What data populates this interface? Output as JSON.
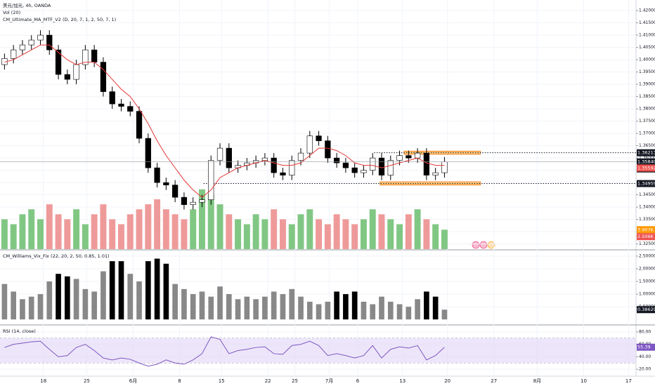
{
  "chart_data": [
    {
      "type": "candlestick",
      "title": "美元/加元, 4h, OANDA",
      "indicators": [
        "Vol (20)",
        "CM_Ultimate_MA_MTF_V2 (D, 20, 7, 1, 2, 50, 7, 1)"
      ],
      "x": [
        3,
        9,
        15,
        21,
        27,
        33,
        39,
        45,
        51,
        57,
        63,
        69,
        75,
        81,
        87,
        93,
        99,
        105,
        111,
        117,
        123,
        129,
        135,
        141,
        147,
        153,
        159,
        165,
        171,
        177,
        183,
        189,
        195,
        201,
        207,
        213,
        219,
        225,
        231,
        237,
        243,
        249,
        255,
        261,
        267,
        273,
        279,
        285,
        291,
        297
      ],
      "open": [
        1.398,
        1.4005,
        1.404,
        1.406,
        1.408,
        1.41,
        1.404,
        1.394,
        1.392,
        1.398,
        1.404,
        1.399,
        1.387,
        1.382,
        1.381,
        1.379,
        1.368,
        1.356,
        1.35,
        1.349,
        1.344,
        1.341,
        1.342,
        1.343,
        1.359,
        1.364,
        1.356,
        1.357,
        1.358,
        1.359,
        1.36,
        1.354,
        1.353,
        1.359,
        1.362,
        1.369,
        1.367,
        1.36,
        1.358,
        1.356,
        1.354,
        1.355,
        1.36,
        1.353,
        1.359,
        1.361,
        1.36,
        1.362,
        1.353,
        1.354
      ],
      "high": [
        1.4025,
        1.406,
        1.408,
        1.41,
        1.412,
        1.412,
        1.406,
        1.396,
        1.4,
        1.406,
        1.406,
        1.401,
        1.389,
        1.384,
        1.383,
        1.381,
        1.37,
        1.358,
        1.352,
        1.351,
        1.346,
        1.344,
        1.345,
        1.361,
        1.366,
        1.366,
        1.359,
        1.36,
        1.361,
        1.362,
        1.362,
        1.356,
        1.361,
        1.364,
        1.371,
        1.371,
        1.369,
        1.362,
        1.36,
        1.358,
        1.357,
        1.362,
        1.362,
        1.361,
        1.363,
        1.363,
        1.364,
        1.364,
        1.356,
        1.3604
      ],
      "low": [
        1.396,
        1.3985,
        1.402,
        1.404,
        1.406,
        1.402,
        1.392,
        1.39,
        1.39,
        1.396,
        1.397,
        1.385,
        1.38,
        1.379,
        1.377,
        1.366,
        1.354,
        1.348,
        1.347,
        1.342,
        1.339,
        1.339,
        1.34,
        1.341,
        1.357,
        1.354,
        1.354,
        1.355,
        1.356,
        1.357,
        1.352,
        1.351,
        1.351,
        1.357,
        1.36,
        1.365,
        1.358,
        1.356,
        1.354,
        1.352,
        1.352,
        1.353,
        1.351,
        1.351,
        1.357,
        1.358,
        1.358,
        1.351,
        1.351,
        1.352
      ],
      "close": [
        1.4005,
        1.404,
        1.406,
        1.408,
        1.41,
        1.404,
        1.394,
        1.392,
        1.398,
        1.404,
        1.399,
        1.387,
        1.382,
        1.381,
        1.379,
        1.368,
        1.356,
        1.35,
        1.349,
        1.344,
        1.341,
        1.342,
        1.343,
        1.359,
        1.364,
        1.356,
        1.357,
        1.358,
        1.359,
        1.36,
        1.354,
        1.353,
        1.359,
        1.362,
        1.369,
        1.367,
        1.36,
        1.358,
        1.356,
        1.354,
        1.355,
        1.36,
        1.353,
        1.359,
        1.361,
        1.36,
        1.362,
        1.353,
        1.354,
        1.3584
      ],
      "up_color": "#ffffff",
      "down_color": "#000000",
      "wick_color": "#000000",
      "ma": {
        "color": "#e53935",
        "values": [
          1.399,
          1.4,
          1.402,
          1.404,
          1.406,
          1.406,
          1.403,
          1.4,
          1.398,
          1.399,
          1.399,
          1.396,
          1.392,
          1.388,
          1.385,
          1.38,
          1.374,
          1.367,
          1.361,
          1.356,
          1.351,
          1.347,
          1.344,
          1.347,
          1.352,
          1.354,
          1.356,
          1.357,
          1.358,
          1.359,
          1.358,
          1.357,
          1.357,
          1.358,
          1.361,
          1.364,
          1.364,
          1.363,
          1.361,
          1.358,
          1.357,
          1.357,
          1.356,
          1.357,
          1.358,
          1.359,
          1.36,
          1.358,
          1.357,
          1.357
        ]
      },
      "volume": {
        "ylim": [
          0,
          50
        ],
        "up_color": "#81c784",
        "down_color": "#ef9a9a",
        "values": [
          6,
          5,
          7,
          8,
          6,
          9,
          7,
          6,
          8,
          5,
          7,
          9,
          6,
          5,
          7,
          8,
          9,
          10,
          8,
          7,
          6,
          8,
          12,
          11,
          9,
          7,
          6,
          5,
          7,
          6,
          8,
          6,
          5,
          7,
          8,
          6,
          5,
          7,
          6,
          5,
          6,
          8,
          7,
          6,
          5,
          7,
          8,
          6,
          5,
          3.907
        ],
        "tags": [
          {
            "value": 3.907,
            "label": "3.907K",
            "color": "#ff9800"
          },
          {
            "value": 2.506,
            "label": "2.506K",
            "color": "#ef5350"
          }
        ]
      },
      "levels": [
        {
          "value": 1.36213,
          "from": 250
        },
        {
          "value": 1.34959,
          "from": 136
        }
      ],
      "zones": [
        {
          "x": [
            270,
            321
          ],
          "y": [
            1.3615,
            1.3628
          ]
        },
        {
          "x": [
            254,
            321
          ],
          "y": [
            1.349,
            1.3503
          ]
        }
      ],
      "zone_color": "#ffcc80",
      "zone_border": "#ef6c00",
      "tags": [
        {
          "value": 1.36213,
          "label": "1.36213",
          "color": "#131722"
        },
        {
          "value": 1.3584,
          "label": "1.35840",
          "color": "#131722",
          "note": "33:48"
        },
        {
          "value": 1.35592,
          "label": "1.35592",
          "color": "#ef5350"
        },
        {
          "value": 1.34959,
          "label": "1.34959",
          "color": "#131722"
        }
      ],
      "xlim": [
        0,
        425
      ],
      "xticks": [
        {
          "value": 29,
          "label": "18"
        },
        {
          "value": 58,
          "label": "25"
        },
        {
          "value": 89,
          "label": "6月"
        },
        {
          "value": 120,
          "label": "8"
        },
        {
          "value": 148,
          "label": "15"
        },
        {
          "value": 179,
          "label": "22"
        },
        {
          "value": 197,
          "label": "25"
        },
        {
          "value": 220,
          "label": "7月"
        },
        {
          "value": 239,
          "label": "6"
        },
        {
          "value": 269,
          "label": "13"
        },
        {
          "value": 299,
          "label": "20"
        },
        {
          "value": 330,
          "label": "27"
        },
        {
          "value": 359,
          "label": "8月"
        },
        {
          "value": 390,
          "label": "10"
        },
        {
          "value": 420,
          "label": "17"
        }
      ],
      "ylim": [
        1.3229,
        1.4243
      ],
      "yticks": [
        {
          "value": 1.325,
          "label": "1.32500"
        },
        {
          "value": 1.33,
          "label": "1.33000"
        },
        {
          "value": 1.335,
          "label": "1.33500"
        },
        {
          "value": 1.34,
          "label": "1.34000"
        },
        {
          "value": 1.345,
          "label": "1.34500"
        },
        {
          "value": 1.35,
          "label": "1.35000"
        },
        {
          "value": 1.355,
          "label": "1.35500"
        },
        {
          "value": 1.36,
          "label": "1.36000"
        },
        {
          "value": 1.365,
          "label": "1.36500"
        },
        {
          "value": 1.37,
          "label": "1.37000"
        },
        {
          "value": 1.375,
          "label": "1.37500"
        },
        {
          "value": 1.38,
          "label": "1.38000"
        },
        {
          "value": 1.385,
          "label": "1.38500"
        },
        {
          "value": 1.39,
          "label": "1.39000"
        },
        {
          "value": 1.395,
          "label": "1.39500"
        },
        {
          "value": 1.4,
          "label": "1.40000"
        },
        {
          "value": 1.405,
          "label": "1.40500"
        },
        {
          "value": 1.41,
          "label": "1.41000"
        },
        {
          "value": 1.415,
          "label": "1.41500"
        },
        {
          "value": 1.42,
          "label": "1.42000"
        }
      ]
    },
    {
      "type": "bar",
      "title": "CM_Williams_Vix_Fix (22, 20, 2, 50, 0.85, 1.01)",
      "values": [
        1.4,
        1.1,
        0.8,
        0.9,
        1.0,
        1.5,
        1.8,
        1.7,
        1.6,
        1.2,
        1.1,
        1.9,
        2.3,
        2.3,
        1.8,
        1.5,
        2.3,
        2.4,
        2.2,
        1.4,
        1.2,
        1.0,
        1.1,
        0.9,
        1.3,
        1.0,
        0.8,
        0.9,
        0.8,
        0.9,
        1.1,
        1.0,
        1.2,
        0.9,
        0.7,
        0.6,
        0.7,
        1.1,
        1.0,
        1.1,
        0.7,
        0.6,
        0.9,
        0.7,
        0.6,
        0.5,
        0.8,
        1.1,
        0.9,
        0.38629
      ],
      "colors": [
        "#888888",
        "#888888",
        "#888888",
        "#888888",
        "#888888",
        "#888888",
        "#000000",
        "#000000",
        "#888888",
        "#888888",
        "#888888",
        "#888888",
        "#000000",
        "#000000",
        "#888888",
        "#888888",
        "#000000",
        "#000000",
        "#000000",
        "#888888",
        "#888888",
        "#888888",
        "#888888",
        "#888888",
        "#888888",
        "#888888",
        "#888888",
        "#888888",
        "#888888",
        "#888888",
        "#888888",
        "#888888",
        "#888888",
        "#888888",
        "#888888",
        "#888888",
        "#888888",
        "#000000",
        "#000000",
        "#000000",
        "#888888",
        "#888888",
        "#888888",
        "#888888",
        "#888888",
        "#888888",
        "#888888",
        "#000000",
        "#000000",
        "#888888"
      ],
      "tag_color": "#131722",
      "ylim": [
        -0.19,
        2.72
      ],
      "yticks": [
        {
          "value": 0.5,
          "label": "0.50000"
        },
        {
          "value": 1,
          "label": "1.00000"
        },
        {
          "value": 1.5,
          "label": "1.50000"
        },
        {
          "value": 2,
          "label": "2.00000"
        },
        {
          "value": 2.5,
          "label": "2.50000"
        }
      ]
    },
    {
      "type": "line",
      "title": "RSI (14, close)",
      "color": "#7e57c2",
      "band": [
        30,
        70
      ],
      "band_color": "#e1d5f7",
      "tag_color": "#7e57c2",
      "values": [
        55,
        60,
        62,
        64,
        65,
        52,
        40,
        42,
        55,
        60,
        50,
        38,
        35,
        38,
        36,
        30,
        25,
        28,
        35,
        30,
        28,
        35,
        45,
        72,
        68,
        45,
        50,
        52,
        55,
        56,
        45,
        44,
        58,
        60,
        65,
        58,
        42,
        45,
        42,
        38,
        42,
        58,
        38,
        52,
        56,
        54,
        58,
        35,
        42,
        55.39
      ],
      "ylim": [
        10,
        90
      ],
      "yticks": [
        {
          "value": 20,
          "label": "20.00"
        },
        {
          "value": 40,
          "label": "40.00"
        },
        {
          "value": 60,
          "label": "60.00"
        },
        {
          "value": 80,
          "label": "80.00"
        }
      ]
    }
  ]
}
